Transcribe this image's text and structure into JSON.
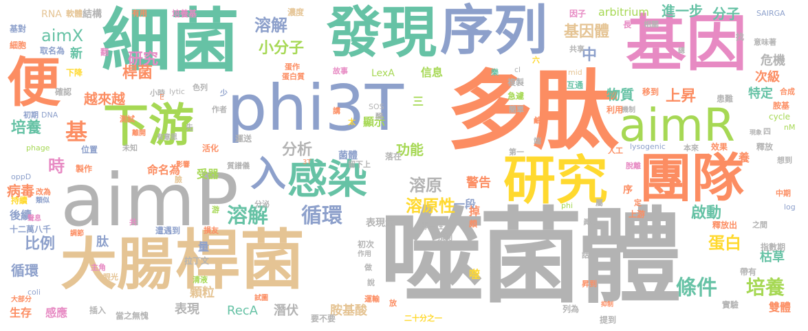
{
  "cloud": {
    "palette": {
      "green": "#66C2A5",
      "orange": "#FC8D62",
      "blue": "#8DA0CB",
      "pink": "#E78AC3",
      "lime": "#A6D854",
      "yellow": "#FFD92F",
      "tan": "#E5C494",
      "gray": "#B3B3B3"
    },
    "words": {
      "w1": "噬菌體",
      "w2": "多肽",
      "w3": "細菌",
      "w4": "aimP",
      "w5": "phi3T",
      "w6": "大腸",
      "w7": "桿菌",
      "w8": "基因",
      "w9": "發現",
      "w10": "序列",
      "w11": "團隊",
      "w12": "研究",
      "w13": "感染",
      "w14": "下游",
      "w15": "aimR",
      "w16": "便",
      "w17": "入",
      "w18": "溶解",
      "w19": "循環",
      "w20": "條件",
      "w21": "培養",
      "w22": "基",
      "w23": "aimX",
      "w24": "溶解",
      "w25": "小分子",
      "w26": "基因體",
      "w27": "中",
      "w28": "物質",
      "w29": "上昇",
      "w30": "蛋白",
      "w31": "溶原性",
      "w32": "溶原",
      "w33": "分析",
      "w34": "功能",
      "w35": "警告",
      "w36": "越來越",
      "w37": "研究",
      "w38": "比例",
      "w39": "培養",
      "w40": "循環",
      "w41": "病毒",
      "w42": "時",
      "w43": "桿菌",
      "w44": "arbitrium",
      "w45": "進一步",
      "w46": "分子",
      "w47": "危機",
      "w48": "次級",
      "w49": "特定",
      "w50": "啟動",
      "w51": "枯草",
      "w52": "雙體",
      "w53": "胺基酸",
      "w54": "潛伏",
      "w55": "RecA",
      "w56": "表現",
      "w57": "顆粒",
      "w58": "感應",
      "w59": "生存",
      "w60": "表現量",
      "w61": "一段",
      "w62": "命名為",
      "w63": "受器",
      "w64": "後續",
      "w65": "菌體",
      "w66": "顯示",
      "w67": "信息",
      "w68": "LexA",
      "w69": "結構",
      "w70": "軟體",
      "w71": "RNA",
      "w72": "有用",
      "w73": "培養基",
      "w74": "濃度",
      "w75": "因子",
      "w76": "SAIRGA",
      "w77": "基對",
      "w78": "細胞",
      "w79": "取名為",
      "w80": "翻",
      "w81": "新",
      "w82": "下降",
      "w83": "確認",
      "w84": "初期",
      "w85": "DNA",
      "w86": "測試",
      "w87": "phage",
      "w88": "位置",
      "w89": "製作",
      "w90": "oppD",
      "w91": "改為",
      "w92": "類似",
      "w93": "持續",
      "w94": "十二萬八千",
      "w95": "主角",
      "w96": "眼光",
      "w97": "大部分",
      "w98": "coli",
      "w99": "插入",
      "w100": "當之無愧",
      "w101": "要不要",
      "w102": "二十分之一",
      "w103": "提到",
      "w104": "實驗",
      "w105": "帶有",
      "w106": "指數期",
      "w107": "釋放出",
      "w108": "之間",
      "w109": "log",
      "w110": "中期",
      "w111": "想到",
      "w112": "釋放",
      "w113": "nM",
      "w114": "cycle",
      "w115": "胺基",
      "w116": "合成",
      "w117": "患難",
      "w118": "機制",
      "w119": "利用",
      "w120": "移到",
      "w121": "急遽",
      "w122": "複製",
      "w123": "互通",
      "w124": "mid",
      "w125": "lytic",
      "w126": "小時",
      "w127": "色列",
      "w128": "作者",
      "w129": "SOS",
      "w130": "酶",
      "w131": "運送",
      "w132": "質譜儀",
      "w133": "lysogenic",
      "w134": "本來",
      "w135": "效果",
      "w136": "人工",
      "w137": "脫離",
      "w138": "第一",
      "w139": "專一性",
      "w140": "遭遇到",
      "w141": "損友",
      "w142": "拉丁文",
      "w143": "清液",
      "w144": "分泌",
      "w145": "留下上",
      "w146": "落在",
      "w147": "初次",
      "w148": "作用",
      "w149": "運輸",
      "w150": "試圖",
      "w151": "預測",
      "w152": "上游",
      "w153": "抑制",
      "w154": "列為",
      "w155": "昇到",
      "w156": "眞的",
      "w157": "相關",
      "w158": "共享",
      "w159": "意味著",
      "w160": "長",
      "w161": "找",
      "w162": "總",
      "w163": "六",
      "w164": "樂",
      "w165": "cl",
      "w166": "蛋作",
      "w167": "蛋白質",
      "w168": "故事",
      "w169": "簡單",
      "w170": "四",
      "w171": "現象",
      "w172": "活化",
      "w173": "離開",
      "w174": "有意思",
      "w175": "先",
      "w176": "未知",
      "w177": "影響",
      "w178": "游",
      "w179": "量",
      "w180": "肽",
      "w181": "做",
      "w182": "說",
      "w183": "放",
      "w184": "噬",
      "w185": "話",
      "w186": "頗",
      "w187": "掉",
      "w188": "序",
      "w189": "定",
      "w190": "養",
      "w191": "phi",
      "w192": "屬",
      "w193": "3T",
      "w194": "講",
      "w195": "太",
      "w196": "三",
      "w197": "少",
      "w198": "E",
      "w199": "端",
      "w200": "鹼",
      "w201": "共",
      "w202": "臉",
      "w203": "調節",
      "w204": "聲息"
    }
  }
}
